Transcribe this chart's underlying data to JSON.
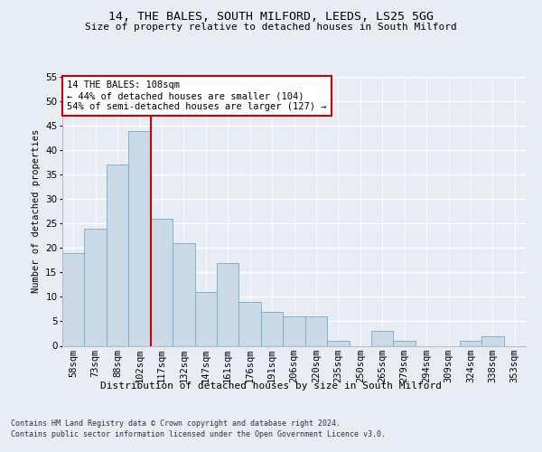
{
  "title_line1": "14, THE BALES, SOUTH MILFORD, LEEDS, LS25 5GG",
  "title_line2": "Size of property relative to detached houses in South Milford",
  "xlabel": "Distribution of detached houses by size in South Milford",
  "ylabel": "Number of detached properties",
  "categories": [
    "58sqm",
    "73sqm",
    "88sqm",
    "102sqm",
    "117sqm",
    "132sqm",
    "147sqm",
    "161sqm",
    "176sqm",
    "191sqm",
    "206sqm",
    "220sqm",
    "235sqm",
    "250sqm",
    "265sqm",
    "279sqm",
    "294sqm",
    "309sqm",
    "324sqm",
    "338sqm",
    "353sqm"
  ],
  "values": [
    19,
    24,
    37,
    44,
    26,
    21,
    11,
    17,
    9,
    7,
    6,
    6,
    1,
    0,
    3,
    1,
    0,
    0,
    1,
    2,
    0
  ],
  "bar_color": "#c9d9e8",
  "bar_edge_color": "#7aa8c8",
  "vline_x": 3.5,
  "vline_color": "#cc0000",
  "annotation_text": "14 THE BALES: 108sqm\n← 44% of detached houses are smaller (104)\n54% of semi-detached houses are larger (127) →",
  "annotation_box_color": "white",
  "annotation_box_edge": "#cc0000",
  "ylim": [
    0,
    55
  ],
  "yticks": [
    0,
    5,
    10,
    15,
    20,
    25,
    30,
    35,
    40,
    45,
    50,
    55
  ],
  "footer_line1": "Contains HM Land Registry data © Crown copyright and database right 2024.",
  "footer_line2": "Contains public sector information licensed under the Open Government Licence v3.0.",
  "bg_color": "#e8edf5",
  "plot_bg_color": "#e8edf5"
}
